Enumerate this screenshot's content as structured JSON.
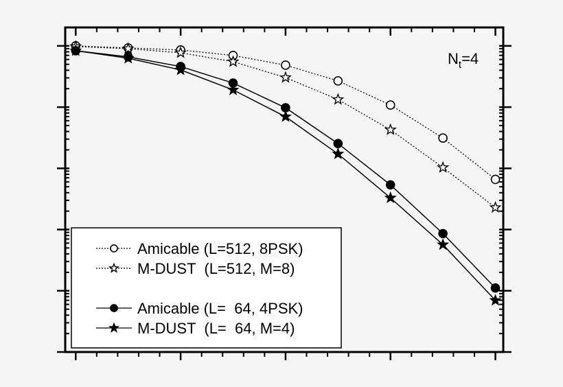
{
  "chart_data": {
    "type": "line",
    "title": "",
    "xlabel": "",
    "ylabel": "",
    "annotation": {
      "main": "N",
      "sub": "t",
      "rest": "=4"
    },
    "x": [
      0,
      1,
      2,
      3,
      4,
      5,
      6,
      7,
      8
    ],
    "xlim": [
      -0.2,
      8.15
    ],
    "x_major_ticks": [
      0,
      2,
      4,
      6,
      8
    ],
    "yscale": "log",
    "ylim": [
      1e-06,
      0.2
    ],
    "grid": false,
    "tick_labels_visible": false,
    "legend_placement": "bottom-left",
    "series": [
      {
        "name": "Amicable (L=512, 8PSK)",
        "marker": "open-circle",
        "line": "dotted",
        "values": [
          0.1,
          0.0925,
          0.0857,
          0.0697,
          0.0484,
          0.0268,
          0.0108,
          0.00312,
          0.00066
        ]
      },
      {
        "name": "M-DUST  (L=512, M=8)",
        "marker": "open-star",
        "line": "dotted",
        "values": [
          0.0975,
          0.09,
          0.0772,
          0.0552,
          0.0304,
          0.0133,
          0.00426,
          0.00103,
          0.000229
        ]
      },
      {
        "name": "Amicable (L=  64, 4PSK)",
        "marker": "filled-circle",
        "line": "solid",
        "values": [
          0.0834,
          0.0661,
          0.046,
          0.0247,
          0.00975,
          0.00254,
          0.000537,
          8.6e-05,
          1.11e-05
        ]
      },
      {
        "name": "M-DUST  (L=  64, M=4)",
        "marker": "filled-star",
        "line": "solid",
        "values": [
          0.0834,
          0.0628,
          0.0405,
          0.0191,
          0.00697,
          0.00172,
          0.000329,
          5.66e-05,
          6.97e-06
        ]
      }
    ]
  }
}
